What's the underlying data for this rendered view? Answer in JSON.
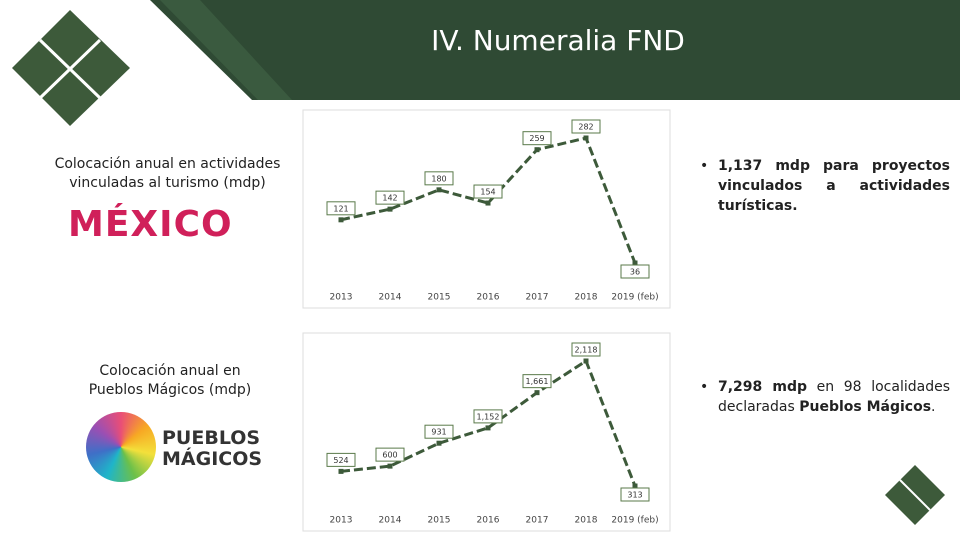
{
  "title": "IV. Numeralia FND",
  "sections": [
    {
      "caption": "Colocación anual en actividades vinculadas al turismo (mdp)",
      "logo": "MÉXICO",
      "bullet": [
        {
          "text": "1,137 mdp para proyectos vinculados a actividades turísticas.",
          "bold": true
        }
      ]
    },
    {
      "caption": "Colocación anual en Pueblos Mágicos (mdp)",
      "logo": "PUEBLOS MÁGICOS",
      "bullet": [
        {
          "text": "7,298 mdp",
          "bold": true
        },
        {
          "text": " en 98 localidades declaradas ",
          "bold": false
        },
        {
          "text": "Pueblos Mágicos",
          "bold": true
        },
        {
          "text": ".",
          "bold": false
        }
      ]
    }
  ],
  "chart_data": [
    {
      "type": "line",
      "color": "#3d5a3a",
      "categories": [
        "2013",
        "2014",
        "2015",
        "2016",
        "2017",
        "2018",
        "2019 (feb)"
      ],
      "values": [
        121,
        142,
        180,
        154,
        259,
        282,
        36
      ]
    },
    {
      "type": "line",
      "color": "#3d5a3a",
      "categories": [
        "2013",
        "2014",
        "2015",
        "2016",
        "2017",
        "2018",
        "2019 (feb)"
      ],
      "values": [
        524,
        600,
        931,
        1152,
        1661,
        2118,
        313
      ],
      "value_labels": [
        "524",
        "600",
        "931",
        "1,152",
        "1,661",
        "2,118",
        "313"
      ]
    }
  ]
}
